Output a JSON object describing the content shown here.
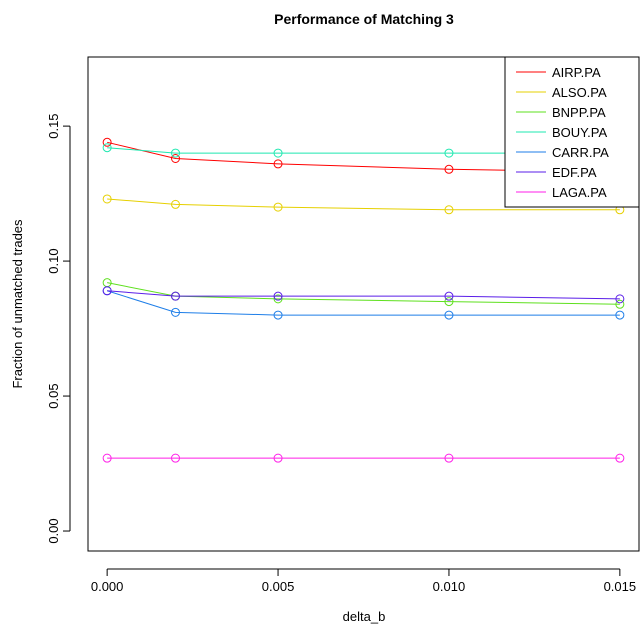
{
  "chart_data": {
    "type": "line",
    "title": "Performance of Matching 3",
    "x_label": "delta_b",
    "y_label": "Fraction of unmatched trades",
    "x": [
      0,
      0.002,
      0.005,
      0.01,
      0.015
    ],
    "series": [
      {
        "name": "AIRP.PA",
        "color": "#ff0000",
        "values": [
          0.144,
          0.138,
          0.136,
          0.134,
          0.133
        ]
      },
      {
        "name": "ALSO.PA",
        "color": "#e6d000",
        "values": [
          0.123,
          0.121,
          0.12,
          0.119,
          0.119
        ]
      },
      {
        "name": "BNPP.PA",
        "color": "#5ee01e",
        "values": [
          0.092,
          0.087,
          0.086,
          0.085,
          0.084
        ]
      },
      {
        "name": "BOUY.PA",
        "color": "#1ee8b0",
        "values": [
          0.142,
          0.14,
          0.14,
          0.14,
          0.14
        ]
      },
      {
        "name": "CARR.PA",
        "color": "#1e7ee8",
        "values": [
          0.089,
          0.081,
          0.08,
          0.08,
          0.08
        ]
      },
      {
        "name": "EDF.PA",
        "color": "#5a1ee8",
        "values": [
          0.089,
          0.087,
          0.087,
          0.087,
          0.086
        ]
      },
      {
        "name": "LAGA.PA",
        "color": "#ff1ee8",
        "values": [
          0.027,
          0.027,
          0.027,
          0.027,
          0.027
        ]
      }
    ],
    "xlim": [
      -0.00056,
      0.01556
    ],
    "ylim": [
      -0.0074,
      0.1756
    ],
    "xticks": [
      {
        "value": 0,
        "label": "0.000"
      },
      {
        "value": 0.005,
        "label": "0.005"
      },
      {
        "value": 0.01,
        "label": "0.010"
      },
      {
        "value": 0.015,
        "label": "0.015"
      }
    ],
    "yticks": [
      {
        "value": 0,
        "label": "0.00"
      },
      {
        "value": 0.05,
        "label": "0.05"
      },
      {
        "value": 0.1,
        "label": "0.10"
      },
      {
        "value": 0.15,
        "label": "0.15"
      }
    ],
    "legend": "top-right"
  }
}
